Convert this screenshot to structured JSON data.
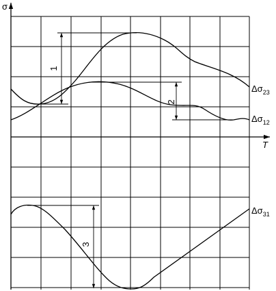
{
  "axes": {
    "y_label": "σ",
    "x_label": "T"
  },
  "curves": [
    {
      "symbol": "Δσ",
      "subscript": "23"
    },
    {
      "symbol": "Δσ",
      "subscript": "12"
    },
    {
      "symbol": "Δσ",
      "subscript": "31"
    }
  ],
  "dimensions": [
    "1",
    "2",
    "3"
  ]
}
